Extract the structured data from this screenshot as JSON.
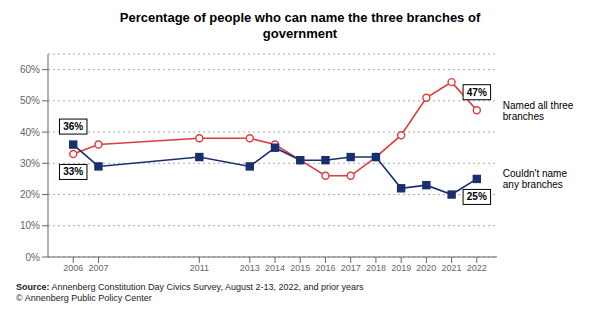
{
  "chart_data": {
    "type": "line",
    "title": "Percentage of people who can name the three branches of\ngovernment",
    "x": [
      2006,
      2007,
      2011,
      2013,
      2014,
      2015,
      2016,
      2017,
      2018,
      2019,
      2020,
      2021,
      2022
    ],
    "series": [
      {
        "name": "Named all three\nbranches",
        "color": "#e0393e",
        "marker": "circle",
        "values": [
          33,
          36,
          38,
          38,
          36,
          31,
          26,
          26,
          32,
          39,
          51,
          56,
          47
        ],
        "annotations": [
          {
            "x": 2006,
            "text": "33%"
          },
          {
            "x": 2022,
            "text": "47%"
          }
        ]
      },
      {
        "name": "Couldn't name\nany branches",
        "color": "#1a2f6e",
        "marker": "square",
        "values": [
          36,
          29,
          32,
          29,
          35,
          31,
          31,
          32,
          32,
          22,
          23,
          20,
          25
        ],
        "annotations": [
          {
            "x": 2006,
            "text": "36%"
          },
          {
            "x": 2022,
            "text": "25%"
          }
        ]
      }
    ],
    "xlim": [
      2005,
      2022.8
    ],
    "xticks": [
      2006,
      2007,
      2011,
      2013,
      2014,
      2015,
      2016,
      2017,
      2018,
      2019,
      2020,
      2021,
      2022
    ],
    "ylim": [
      0,
      65
    ],
    "yticks": [
      {
        "value": 0,
        "label": "0%"
      },
      {
        "value": 10,
        "label": "10%"
      },
      {
        "value": 20,
        "label": "20%"
      },
      {
        "value": 30,
        "label": "30%"
      },
      {
        "value": 40,
        "label": "40%"
      },
      {
        "value": 50,
        "label": "50%"
      },
      {
        "value": 60,
        "label": "60%"
      }
    ],
    "grid": true,
    "source_label": "Source:",
    "source": "Annenberg Constitution Day Civics Survey, August 2-13, 2022, and prior years",
    "credit": "© Annenberg Public Policy Center"
  }
}
